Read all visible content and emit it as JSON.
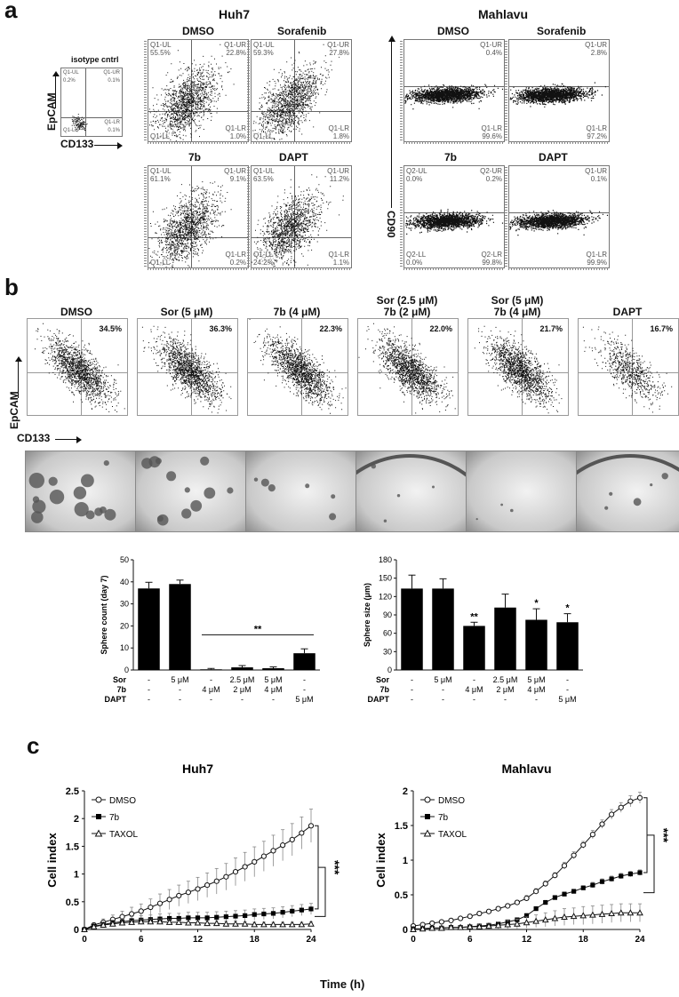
{
  "panel_a": {
    "letter": "a",
    "huh7": {
      "title": "Huh7",
      "isotype": {
        "label": "isotype cntrl",
        "ul": "Q1-UL",
        "ul_v": "0.2%",
        "ur": "Q1-UR",
        "ur_v": "0.1%",
        "ll": "Q1-LL",
        "lr": "Q1-LR",
        "lr_v": "0.1%"
      },
      "plots": [
        {
          "label": "DMSO",
          "ul": "Q1-UL",
          "ul_v": "55.5%",
          "ur": "Q1-UR",
          "ur_v": "22.8%",
          "ll": "Q1-LL",
          "ll_v": "",
          "lr": "Q1-LR",
          "lr_v": "1.0%"
        },
        {
          "label": "Sorafenib",
          "ul": "Q1-UL",
          "ul_v": "59.3%",
          "ur": "Q1-UR",
          "ur_v": "27.8%",
          "ll": "Q1-LL",
          "ll_v": "",
          "lr": "Q1-LR",
          "lr_v": "1.8%"
        },
        {
          "label": "7b",
          "ul": "Q1-UL",
          "ul_v": "61.1%",
          "ur": "Q1-UR",
          "ur_v": "9.1%",
          "ll": "Q1-LL",
          "ll_v": "",
          "lr": "Q1-LR",
          "lr_v": "0.2%"
        },
        {
          "label": "DAPT",
          "ul": "Q1-UL",
          "ul_v": "63.5%",
          "ur": "Q1-UR",
          "ur_v": "11.2%",
          "ll": "Q1-LL",
          "ll_v": "24.2%",
          "lr": "Q1-LR",
          "lr_v": "1.1%"
        }
      ],
      "y_axis": "EpCAM",
      "x_axis": "CD133"
    },
    "mahlavu": {
      "title": "Mahlavu",
      "plots": [
        {
          "label": "DMSO",
          "ur": "Q1-UR",
          "ur_v": "0.4%",
          "lr": "Q1-LR",
          "lr_v": "99.6%",
          "ul": "",
          "ul_v": "",
          "ll": "",
          "ll_v": ""
        },
        {
          "label": "Sorafenib",
          "ur": "Q1-UR",
          "ur_v": "2.8%",
          "lr": "Q1-LR",
          "lr_v": "97.2%",
          "ul": "",
          "ul_v": "",
          "ll": "",
          "ll_v": ""
        },
        {
          "label": "7b",
          "ul": "Q2-UL",
          "ul_v": "0.0%",
          "ur": "Q2-UR",
          "ur_v": "0.2%",
          "ll": "Q2-LL",
          "ll_v": "0.0%",
          "lr": "Q2-LR",
          "lr_v": "99.8%"
        },
        {
          "label": "DAPT",
          "ul": "",
          "ul_v": "",
          "ur": "Q1-UR",
          "ur_v": "0.1%",
          "ll": "",
          "ll_v": "",
          "lr": "Q1-LR",
          "lr_v": "99.9%"
        }
      ],
      "y_axis": "CD90"
    }
  },
  "panel_b": {
    "letter": "b",
    "flow": [
      {
        "label": "DMSO",
        "label2": "",
        "pct": "34.5%"
      },
      {
        "label": "Sor (5 μM)",
        "label2": "",
        "pct": "36.3%"
      },
      {
        "label": "7b (4 μM)",
        "label2": "",
        "pct": "22.3%"
      },
      {
        "label": "Sor (2.5 μM)",
        "label2": "7b (2 μM)",
        "pct": "22.0%"
      },
      {
        "label": "Sor (5 μM)",
        "label2": "7b (4 μM)",
        "pct": "21.7%"
      },
      {
        "label": "DAPT",
        "label2": "",
        "pct": "16.7%"
      }
    ],
    "y_axis": "EpCAM",
    "x_axis": "CD133",
    "treat_rows": {
      "labels": [
        "Sor",
        "7b",
        "DAPT"
      ],
      "cols": [
        [
          "-",
          "-",
          "-"
        ],
        [
          "5 μM",
          "-",
          "-"
        ],
        [
          "-",
          "4 μM",
          "-"
        ],
        [
          "2.5 μM",
          "2 μM",
          "-"
        ],
        [
          "5 μM",
          "4 μM",
          "-"
        ],
        [
          "-",
          "-",
          "5 μM"
        ]
      ]
    }
  },
  "panel_c": {
    "letter": "c",
    "x_label": "Time (h)"
  },
  "chart_data": [
    {
      "type": "bar",
      "ylabel": "Sphere count (day 7)",
      "ylim": [
        0,
        50
      ],
      "yticks": [
        0,
        10,
        20,
        30,
        40,
        50
      ],
      "values": [
        37,
        39,
        0.3,
        1.2,
        0.8,
        7.6
      ],
      "errors": [
        2.8,
        1.8,
        0.4,
        0.8,
        0.6,
        2.0
      ],
      "significance": "**"
    },
    {
      "type": "bar",
      "ylabel": "Sphere size (μm)",
      "ylim": [
        0,
        180
      ],
      "yticks": [
        0,
        30,
        60,
        90,
        120,
        150,
        180
      ],
      "values": [
        133,
        133,
        72,
        102,
        82,
        78
      ],
      "errors": [
        22,
        16,
        6,
        22,
        18,
        14
      ],
      "annotations": [
        "",
        "",
        "**",
        "",
        "*",
        "*"
      ]
    },
    {
      "type": "line",
      "title": "Huh7",
      "xlabel": "Time (h)",
      "ylabel": "Cell index",
      "xlim": [
        0,
        24
      ],
      "ylim": [
        0,
        2.5
      ],
      "xticks": [
        0,
        6,
        12,
        18,
        24
      ],
      "yticks": [
        0,
        0.5,
        1.0,
        1.5,
        2.0,
        2.5
      ],
      "significance": "***",
      "series": [
        {
          "name": "DMSO",
          "marker": "circle",
          "x": [
            0,
            1,
            2,
            3,
            4,
            5,
            6,
            7,
            8,
            9,
            10,
            11,
            12,
            13,
            14,
            15,
            16,
            17,
            18,
            19,
            20,
            21,
            22,
            23,
            24
          ],
          "y": [
            0,
            0.08,
            0.13,
            0.18,
            0.23,
            0.28,
            0.33,
            0.4,
            0.47,
            0.54,
            0.61,
            0.67,
            0.73,
            0.8,
            0.87,
            0.95,
            1.04,
            1.13,
            1.22,
            1.32,
            1.42,
            1.52,
            1.62,
            1.74,
            1.87
          ],
          "err": [
            0.02,
            0.04,
            0.06,
            0.08,
            0.1,
            0.12,
            0.13,
            0.15,
            0.17,
            0.18,
            0.19,
            0.2,
            0.21,
            0.22,
            0.23,
            0.24,
            0.25,
            0.26,
            0.27,
            0.27,
            0.28,
            0.28,
            0.29,
            0.29,
            0.3
          ]
        },
        {
          "name": "7b",
          "marker": "square",
          "x": [
            0,
            1,
            2,
            3,
            4,
            5,
            6,
            7,
            8,
            9,
            10,
            11,
            12,
            13,
            14,
            15,
            16,
            17,
            18,
            19,
            20,
            21,
            22,
            23,
            24
          ],
          "y": [
            0,
            0.06,
            0.09,
            0.12,
            0.14,
            0.16,
            0.17,
            0.18,
            0.19,
            0.2,
            0.2,
            0.21,
            0.21,
            0.21,
            0.22,
            0.23,
            0.24,
            0.25,
            0.27,
            0.28,
            0.29,
            0.31,
            0.33,
            0.35,
            0.37
          ],
          "err": [
            0.02,
            0.03,
            0.04,
            0.05,
            0.06,
            0.07,
            0.08,
            0.08,
            0.09,
            0.09,
            0.09,
            0.1,
            0.1,
            0.1,
            0.1,
            0.1,
            0.1,
            0.1,
            0.1,
            0.1,
            0.1,
            0.1,
            0.1,
            0.1,
            0.1
          ]
        },
        {
          "name": "TAXOL",
          "marker": "triangle",
          "x": [
            0,
            1,
            2,
            3,
            4,
            5,
            6,
            7,
            8,
            9,
            10,
            11,
            12,
            13,
            14,
            15,
            16,
            17,
            18,
            19,
            20,
            21,
            22,
            23,
            24
          ],
          "y": [
            0,
            0.05,
            0.08,
            0.1,
            0.12,
            0.13,
            0.14,
            0.14,
            0.14,
            0.13,
            0.13,
            0.12,
            0.12,
            0.11,
            0.11,
            0.1,
            0.1,
            0.1,
            0.09,
            0.09,
            0.09,
            0.09,
            0.09,
            0.09,
            0.1
          ],
          "err": [
            0.01,
            0.02,
            0.03,
            0.03,
            0.04,
            0.04,
            0.05,
            0.05,
            0.05,
            0.05,
            0.05,
            0.05,
            0.05,
            0.05,
            0.05,
            0.05,
            0.05,
            0.04,
            0.04,
            0.04,
            0.04,
            0.04,
            0.04,
            0.04,
            0.04
          ]
        }
      ]
    },
    {
      "type": "line",
      "title": "Mahlavu",
      "xlabel": "Time (h)",
      "ylabel": "Cell index",
      "xlim": [
        0,
        24
      ],
      "ylim": [
        0,
        2.0
      ],
      "xticks": [
        0,
        6,
        12,
        18,
        24
      ],
      "yticks": [
        0,
        0.5,
        1.0,
        1.5,
        2.0
      ],
      "significance": "***",
      "series": [
        {
          "name": "DMSO",
          "marker": "circle",
          "x": [
            0,
            1,
            2,
            3,
            4,
            5,
            6,
            7,
            8,
            9,
            10,
            11,
            12,
            13,
            14,
            15,
            16,
            17,
            18,
            19,
            20,
            21,
            22,
            23,
            24
          ],
          "y": [
            0.05,
            0.07,
            0.09,
            0.11,
            0.13,
            0.16,
            0.19,
            0.23,
            0.26,
            0.3,
            0.34,
            0.39,
            0.45,
            0.55,
            0.66,
            0.78,
            0.92,
            1.07,
            1.22,
            1.37,
            1.52,
            1.66,
            1.76,
            1.85,
            1.9
          ],
          "err": [
            0.02,
            0.02,
            0.02,
            0.02,
            0.02,
            0.02,
            0.03,
            0.03,
            0.03,
            0.03,
            0.03,
            0.03,
            0.04,
            0.04,
            0.04,
            0.04,
            0.05,
            0.05,
            0.05,
            0.06,
            0.06,
            0.07,
            0.07,
            0.08,
            0.08
          ]
        },
        {
          "name": "7b",
          "marker": "square",
          "x": [
            0,
            1,
            2,
            3,
            4,
            5,
            6,
            7,
            8,
            9,
            10,
            11,
            12,
            13,
            14,
            15,
            16,
            17,
            18,
            19,
            20,
            21,
            22,
            23,
            24
          ],
          "y": [
            0.01,
            0.01,
            0.02,
            0.02,
            0.03,
            0.03,
            0.04,
            0.05,
            0.06,
            0.08,
            0.11,
            0.14,
            0.2,
            0.3,
            0.39,
            0.46,
            0.51,
            0.55,
            0.6,
            0.64,
            0.69,
            0.73,
            0.77,
            0.8,
            0.82
          ],
          "err": [
            0.01,
            0.01,
            0.01,
            0.01,
            0.01,
            0.01,
            0.01,
            0.02,
            0.02,
            0.02,
            0.02,
            0.02,
            0.03,
            0.03,
            0.03,
            0.03,
            0.03,
            0.03,
            0.03,
            0.04,
            0.04,
            0.04,
            0.04,
            0.04,
            0.04
          ]
        },
        {
          "name": "TAXOL",
          "marker": "triangle",
          "x": [
            0,
            1,
            2,
            3,
            4,
            5,
            6,
            7,
            8,
            9,
            10,
            11,
            12,
            13,
            14,
            15,
            16,
            17,
            18,
            19,
            20,
            21,
            22,
            23,
            24
          ],
          "y": [
            0,
            0.01,
            0.02,
            0.02,
            0.03,
            0.03,
            0.04,
            0.04,
            0.05,
            0.06,
            0.07,
            0.08,
            0.1,
            0.12,
            0.14,
            0.16,
            0.18,
            0.19,
            0.2,
            0.21,
            0.22,
            0.23,
            0.24,
            0.24,
            0.24
          ],
          "err": [
            0.01,
            0.01,
            0.01,
            0.02,
            0.02,
            0.02,
            0.03,
            0.03,
            0.04,
            0.05,
            0.06,
            0.07,
            0.08,
            0.09,
            0.1,
            0.11,
            0.12,
            0.12,
            0.13,
            0.13,
            0.13,
            0.13,
            0.13,
            0.13,
            0.13
          ]
        }
      ]
    }
  ]
}
